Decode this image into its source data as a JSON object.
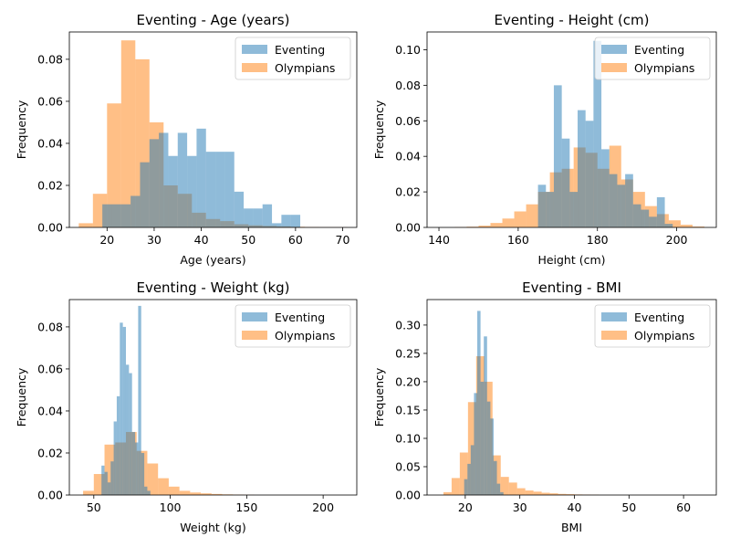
{
  "colors": {
    "eventing": "#1f77b4",
    "olympians": "#ff7f0e"
  },
  "chart_data": [
    {
      "type": "histogram",
      "title": "Eventing - Age (years)",
      "xlabel": "Age (years)",
      "ylabel": "Frequency",
      "xlim": [
        12,
        73
      ],
      "ylim": [
        0,
        0.093
      ],
      "xticks": [
        20,
        30,
        40,
        50,
        60,
        70
      ],
      "yticks": [
        0,
        0.02,
        0.04,
        0.06,
        0.08
      ],
      "xtick_labels": [
        "20",
        "30",
        "40",
        "50",
        "60",
        "70"
      ],
      "ytick_labels": [
        "0.00",
        "0.02",
        "0.04",
        "0.06",
        "0.08"
      ],
      "legend_position": "top-right",
      "series": [
        {
          "name": "Olympians",
          "color": "#ff7f0e",
          "bins": [
            [
              14,
              17,
              0.002
            ],
            [
              17,
              20,
              0.016
            ],
            [
              20,
              23,
              0.059
            ],
            [
              23,
              26,
              0.089
            ],
            [
              26,
              29,
              0.08
            ],
            [
              29,
              32,
              0.05
            ],
            [
              32,
              35,
              0.02
            ],
            [
              35,
              38,
              0.016
            ],
            [
              38,
              41,
              0.007
            ],
            [
              41,
              44,
              0.004
            ],
            [
              44,
              47,
              0.003
            ],
            [
              47,
              50,
              0.0015
            ],
            [
              50,
              53,
              0.001
            ],
            [
              53,
              56,
              0.0007
            ],
            [
              56,
              59,
              0.0005
            ],
            [
              59,
              62,
              0.0003
            ],
            [
              62,
              65,
              0.0002
            ],
            [
              65,
              68,
              0.0001
            ],
            [
              68,
              71,
              0.0001
            ]
          ]
        },
        {
          "name": "Eventing",
          "color": "#1f77b4",
          "bins": [
            [
              19,
              21,
              0.011
            ],
            [
              21,
              23,
              0.011
            ],
            [
              23,
              25,
              0.011
            ],
            [
              25,
              27,
              0.015
            ],
            [
              27,
              29,
              0.031
            ],
            [
              29,
              31,
              0.042
            ],
            [
              31,
              33,
              0.045
            ],
            [
              33,
              35,
              0.034
            ],
            [
              35,
              37,
              0.045
            ],
            [
              37,
              39,
              0.034
            ],
            [
              39,
              41,
              0.047
            ],
            [
              41,
              43,
              0.036
            ],
            [
              43,
              45,
              0.036
            ],
            [
              45,
              47,
              0.036
            ],
            [
              47,
              49,
              0.017
            ],
            [
              49,
              51,
              0.009
            ],
            [
              51,
              53,
              0.009
            ],
            [
              53,
              55,
              0.011
            ],
            [
              55,
              57,
              0.002
            ],
            [
              57,
              59,
              0.006
            ],
            [
              59,
              61,
              0.006
            ]
          ]
        }
      ]
    },
    {
      "type": "histogram",
      "title": "Eventing - Height (cm)",
      "xlabel": "Height (cm)",
      "ylabel": "Frequency",
      "xlim": [
        137,
        210
      ],
      "ylim": [
        0,
        0.11
      ],
      "xticks": [
        140,
        160,
        180,
        200
      ],
      "yticks": [
        0,
        0.02,
        0.04,
        0.06,
        0.08,
        0.1
      ],
      "xtick_labels": [
        "140",
        "160",
        "180",
        "200"
      ],
      "ytick_labels": [
        "0.00",
        "0.02",
        "0.04",
        "0.06",
        "0.08",
        "0.10"
      ],
      "legend_position": "top-right",
      "series": [
        {
          "name": "Olympians",
          "color": "#ff7f0e",
          "bins": [
            [
              144,
              147,
              0.0002
            ],
            [
              147,
              150,
              0.0004
            ],
            [
              150,
              153,
              0.001
            ],
            [
              153,
              156,
              0.0025
            ],
            [
              156,
              159,
              0.005
            ],
            [
              159,
              162,
              0.009
            ],
            [
              162,
              165,
              0.013
            ],
            [
              165,
              168,
              0.02
            ],
            [
              168,
              171,
              0.031
            ],
            [
              171,
              174,
              0.033
            ],
            [
              174,
              177,
              0.045
            ],
            [
              177,
              180,
              0.042
            ],
            [
              180,
              183,
              0.033
            ],
            [
              183,
              186,
              0.046
            ],
            [
              186,
              189,
              0.027
            ],
            [
              189,
              192,
              0.02
            ],
            [
              192,
              195,
              0.012
            ],
            [
              195,
              198,
              0.0075
            ],
            [
              198,
              201,
              0.004
            ],
            [
              201,
              204,
              0.0015
            ],
            [
              204,
              207,
              0.0005
            ]
          ]
        },
        {
          "name": "Eventing",
          "color": "#1f77b4",
          "bins": [
            [
              165,
              167,
              0.024
            ],
            [
              167,
              169,
              0.02
            ],
            [
              169,
              171,
              0.08
            ],
            [
              171,
              173,
              0.05
            ],
            [
              173,
              175,
              0.02
            ],
            [
              175,
              177,
              0.066
            ],
            [
              177,
              179,
              0.06
            ],
            [
              179,
              181,
              0.105
            ],
            [
              181,
              183,
              0.044
            ],
            [
              183,
              185,
              0.03
            ],
            [
              185,
              187,
              0.024
            ],
            [
              187,
              189,
              0.03
            ],
            [
              189,
              191,
              0.013
            ],
            [
              191,
              193,
              0.01
            ],
            [
              193,
              195,
              0.006
            ],
            [
              195,
              197,
              0.017
            ],
            [
              197,
              199,
              0.002
            ]
          ]
        }
      ]
    },
    {
      "type": "histogram",
      "title": "Eventing - Weight (kg)",
      "xlabel": "Weight (kg)",
      "ylabel": "Frequency",
      "xlim": [
        34,
        222
      ],
      "ylim": [
        0,
        0.093
      ],
      "xticks": [
        50,
        100,
        150,
        200
      ],
      "yticks": [
        0,
        0.02,
        0.04,
        0.06,
        0.08
      ],
      "xtick_labels": [
        "50",
        "100",
        "150",
        "200"
      ],
      "ytick_labels": [
        "0.00",
        "0.02",
        "0.04",
        "0.06",
        "0.08"
      ],
      "legend_position": "top-right",
      "series": [
        {
          "name": "Olympians",
          "color": "#ff7f0e",
          "bins": [
            [
              43,
              50,
              0.002
            ],
            [
              50,
              57,
              0.01
            ],
            [
              57,
              64,
              0.024
            ],
            [
              64,
              71,
              0.025
            ],
            [
              71,
              78,
              0.03
            ],
            [
              78,
              85,
              0.021
            ],
            [
              85,
              92,
              0.015
            ],
            [
              92,
              99,
              0.008
            ],
            [
              99,
              106,
              0.004
            ],
            [
              106,
              113,
              0.002
            ],
            [
              113,
              120,
              0.0012
            ],
            [
              120,
              127,
              0.0008
            ],
            [
              127,
              134,
              0.0005
            ],
            [
              134,
              141,
              0.0003
            ],
            [
              141,
              148,
              0.0002
            ],
            [
              148,
              155,
              0.0001
            ]
          ]
        },
        {
          "name": "Eventing",
          "color": "#1f77b4",
          "bins": [
            [
              55,
              57,
              0.014
            ],
            [
              57,
              59,
              0.011
            ],
            [
              59,
              61,
              0.006
            ],
            [
              61,
              63,
              0.016
            ],
            [
              63,
              65,
              0.035
            ],
            [
              65,
              67,
              0.047
            ],
            [
              67,
              69,
              0.082
            ],
            [
              69,
              71,
              0.08
            ],
            [
              71,
              73,
              0.062
            ],
            [
              73,
              75,
              0.058
            ],
            [
              75,
              77,
              0.03
            ],
            [
              77,
              79,
              0.025
            ],
            [
              79,
              81,
              0.09
            ],
            [
              81,
              83,
              0.02
            ],
            [
              83,
              85,
              0.004
            ],
            [
              85,
              87,
              0.002
            ]
          ]
        }
      ]
    },
    {
      "type": "histogram",
      "title": "Eventing - BMI",
      "xlabel": "BMI",
      "ylabel": "Frequency",
      "xlim": [
        13,
        66
      ],
      "ylim": [
        0,
        0.345
      ],
      "xticks": [
        20,
        30,
        40,
        50,
        60
      ],
      "yticks": [
        0,
        0.05,
        0.1,
        0.15,
        0.2,
        0.25,
        0.3
      ],
      "xtick_labels": [
        "20",
        "30",
        "40",
        "50",
        "60"
      ],
      "ytick_labels": [
        "0.00",
        "0.05",
        "0.10",
        "0.15",
        "0.20",
        "0.25",
        "0.30"
      ],
      "legend_position": "top-right",
      "series": [
        {
          "name": "Olympians",
          "color": "#ff7f0e",
          "bins": [
            [
              16,
              17.5,
              0.005
            ],
            [
              17.5,
              19,
              0.03
            ],
            [
              19,
              20.5,
              0.075
            ],
            [
              20.5,
              22,
              0.164
            ],
            [
              22,
              23.5,
              0.245
            ],
            [
              23.5,
              25,
              0.2
            ],
            [
              25,
              26.5,
              0.07
            ],
            [
              26.5,
              28,
              0.032
            ],
            [
              28,
              29.5,
              0.022
            ],
            [
              29.5,
              31,
              0.012
            ],
            [
              31,
              32.5,
              0.008
            ],
            [
              32.5,
              34,
              0.006
            ],
            [
              34,
              35.5,
              0.004
            ],
            [
              35.5,
              37,
              0.003
            ],
            [
              37,
              38.5,
              0.002
            ],
            [
              38.5,
              40,
              0.0015
            ],
            [
              40,
              41.5,
              0.001
            ],
            [
              41.5,
              43,
              0.0008
            ],
            [
              43,
              44.5,
              0.0005
            ]
          ]
        },
        {
          "name": "Eventing",
          "color": "#1f77b4",
          "bins": [
            [
              19.8,
              20.4,
              0.028
            ],
            [
              20.4,
              21,
              0.055
            ],
            [
              21,
              21.6,
              0.088
            ],
            [
              21.6,
              22.2,
              0.18
            ],
            [
              22.2,
              22.8,
              0.325
            ],
            [
              22.8,
              23.4,
              0.2
            ],
            [
              23.4,
              24,
              0.28
            ],
            [
              24,
              24.6,
              0.165
            ],
            [
              24.6,
              25.2,
              0.135
            ],
            [
              25.2,
              25.8,
              0.06
            ],
            [
              25.8,
              26.4,
              0.02
            ],
            [
              26.4,
              27,
              0.005
            ]
          ]
        }
      ]
    }
  ]
}
